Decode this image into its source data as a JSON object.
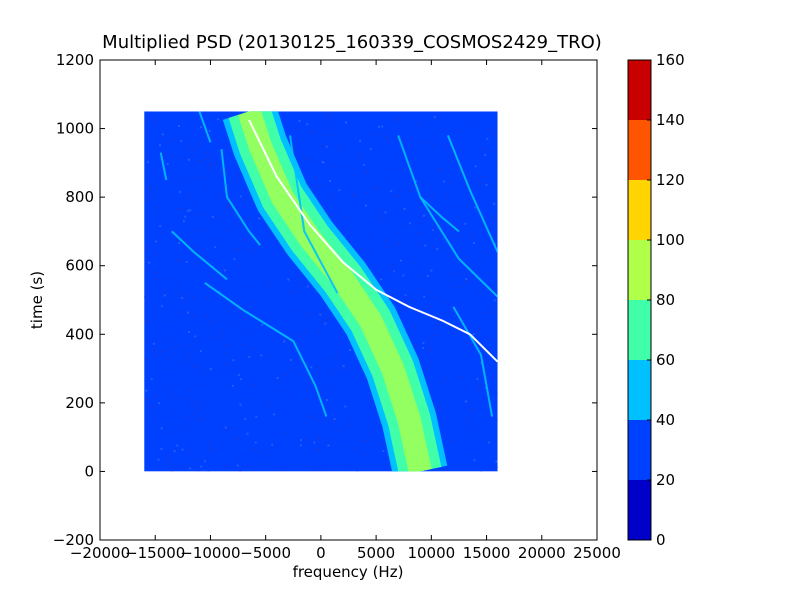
{
  "chart_data": {
    "type": "heatmap",
    "title": "Multiplied PSD (20130125_160339_COSMOS2429_TRO)",
    "xlabel": "frequency (Hz)",
    "ylabel": "time (s)",
    "xlim": [
      -20000,
      25000
    ],
    "ylim": [
      -200,
      1200
    ],
    "x_ticks": [
      "−20000",
      "−15000",
      "−10000",
      "−5000",
      "0",
      "5000",
      "10000",
      "15000",
      "20000",
      "25000"
    ],
    "y_ticks": [
      "−200",
      "0",
      "200",
      "400",
      "600",
      "800",
      "1000",
      "1200"
    ],
    "data_extent": {
      "x": [
        -16000,
        16000
      ],
      "y": [
        0,
        1050
      ]
    },
    "colorbar": {
      "ticks": [
        "0",
        "20",
        "40",
        "60",
        "80",
        "100",
        "120",
        "140",
        "160"
      ],
      "range": [
        0,
        160
      ],
      "levels": [
        {
          "from": 0,
          "to": 20,
          "color": "#0000c8"
        },
        {
          "from": 20,
          "to": 40,
          "color": "#0040ff"
        },
        {
          "from": 40,
          "to": 60,
          "color": "#00c0ff"
        },
        {
          "from": 60,
          "to": 80,
          "color": "#40ffa8"
        },
        {
          "from": 80,
          "to": 100,
          "color": "#b0ff48"
        },
        {
          "from": 100,
          "to": 120,
          "color": "#ffd400"
        },
        {
          "from": 120,
          "to": 140,
          "color": "#ff5500"
        },
        {
          "from": 140,
          "to": 160,
          "color": "#c80000"
        }
      ]
    },
    "background_level": 30,
    "features": {
      "main_band": {
        "description": "Doppler curve (power band)",
        "points": [
          [
            -6500,
            1050
          ],
          [
            -5500,
            950
          ],
          [
            -3500,
            800
          ],
          [
            -1000,
            680
          ],
          [
            2000,
            560
          ],
          [
            4500,
            440
          ],
          [
            6500,
            300
          ],
          [
            8000,
            150
          ],
          [
            9000,
            0
          ]
        ],
        "width_hz": 5000
      },
      "prediction_line": {
        "color": "#ffffff",
        "points": [
          [
            -6500,
            1025
          ],
          [
            -4000,
            860
          ],
          [
            -1000,
            720
          ],
          [
            2000,
            610
          ],
          [
            5000,
            530
          ],
          [
            8000,
            480
          ],
          [
            11000,
            440
          ],
          [
            13500,
            400
          ],
          [
            16000,
            320
          ]
        ]
      },
      "faint_lines": [
        [
          [
            -14500,
            930
          ],
          [
            -14000,
            850
          ]
        ],
        [
          [
            -9000,
            940
          ],
          [
            -8500,
            800
          ],
          [
            -6500,
            700
          ],
          [
            -5500,
            660
          ]
        ],
        [
          [
            -13500,
            700
          ],
          [
            -11500,
            640
          ],
          [
            -8500,
            560
          ]
        ],
        [
          [
            -10500,
            550
          ],
          [
            -7000,
            470
          ],
          [
            -4500,
            420
          ],
          [
            -2500,
            380
          ],
          [
            -500,
            250
          ],
          [
            500,
            160
          ]
        ],
        [
          [
            -11000,
            1050
          ],
          [
            -10000,
            960
          ]
        ],
        [
          [
            -2800,
            980
          ],
          [
            -1500,
            700
          ],
          [
            1500,
            520
          ]
        ],
        [
          [
            7000,
            980
          ],
          [
            9000,
            800
          ],
          [
            11000,
            740
          ],
          [
            12500,
            700
          ]
        ],
        [
          [
            11500,
            980
          ],
          [
            13500,
            820
          ],
          [
            16000,
            640
          ]
        ],
        [
          [
            9000,
            800
          ],
          [
            12500,
            620
          ],
          [
            16000,
            510
          ]
        ],
        [
          [
            12000,
            480
          ],
          [
            14500,
            340
          ],
          [
            15500,
            160
          ]
        ]
      ]
    }
  }
}
